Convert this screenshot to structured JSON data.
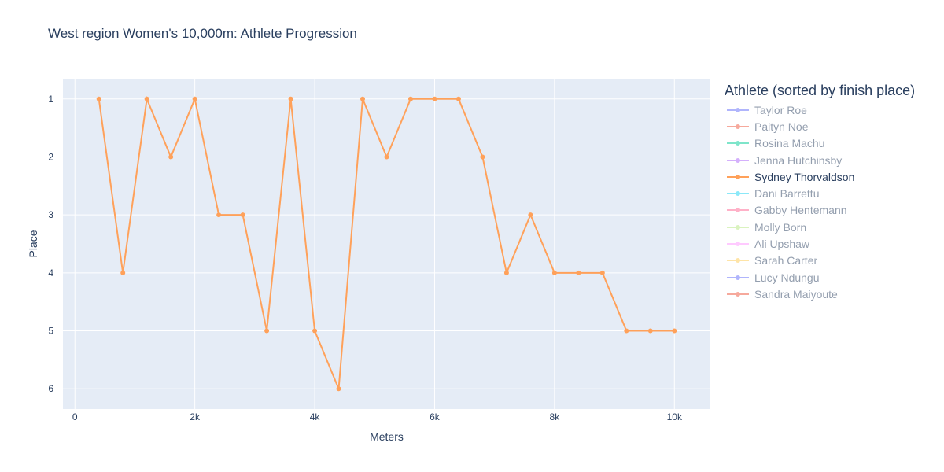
{
  "chart_data": {
    "type": "line",
    "title": "West region Women's 10,000m: Athlete Progression",
    "xlabel": "Meters",
    "ylabel": "Place",
    "xlim": [
      -200,
      10600
    ],
    "ylim": [
      6.35,
      0.65
    ],
    "y_reversed": true,
    "x_ticks": [
      0,
      2000,
      4000,
      6000,
      8000,
      10000
    ],
    "x_tick_labels": [
      "0",
      "2k",
      "4k",
      "6k",
      "8k",
      "10k"
    ],
    "y_ticks": [
      1,
      2,
      3,
      4,
      5,
      6
    ],
    "y_tick_labels": [
      "1",
      "2",
      "3",
      "4",
      "5",
      "6"
    ],
    "grid": true,
    "legend_placement": "right",
    "legend_title": "Athlete (sorted by finish place)",
    "highlighted_series": "Sydney Thorvaldson",
    "series": [
      {
        "name": "Taylor Roe",
        "color": "#636efa",
        "visible": false
      },
      {
        "name": "Paityn Noe",
        "color": "#ef553b",
        "visible": false
      },
      {
        "name": "Rosina Machu",
        "color": "#00cc96",
        "visible": false
      },
      {
        "name": "Jenna Hutchinsby",
        "color": "#ab63fa",
        "visible": false
      },
      {
        "name": "Sydney Thorvaldson",
        "color": "#ffa15a",
        "visible": true,
        "x": [
          400,
          800,
          1200,
          1600,
          2000,
          2400,
          2800,
          3200,
          3600,
          4000,
          4400,
          4800,
          5200,
          5600,
          6000,
          6400,
          6800,
          7200,
          7600,
          8000,
          8400,
          8800,
          9200,
          9600,
          10000
        ],
        "y": [
          1,
          4,
          1,
          2,
          1,
          3,
          3,
          5,
          1,
          5,
          6,
          1,
          2,
          1,
          1,
          1,
          2,
          4,
          3,
          4,
          4,
          4,
          5,
          5,
          5
        ]
      },
      {
        "name": "Dani Barrettu",
        "color": "#19d3f3",
        "visible": false
      },
      {
        "name": "Gabby Hentemann",
        "color": "#ff6692",
        "visible": false
      },
      {
        "name": "Molly Born",
        "color": "#b6e880",
        "visible": false
      },
      {
        "name": "Ali Upshaw",
        "color": "#ff97ff",
        "visible": false
      },
      {
        "name": "Sarah Carter",
        "color": "#fecb52",
        "visible": false
      },
      {
        "name": "Lucy Ndungu",
        "color": "#636efa",
        "visible": false
      },
      {
        "name": "Sandra Maiyoute",
        "color": "#ef553b",
        "visible": false
      }
    ]
  }
}
